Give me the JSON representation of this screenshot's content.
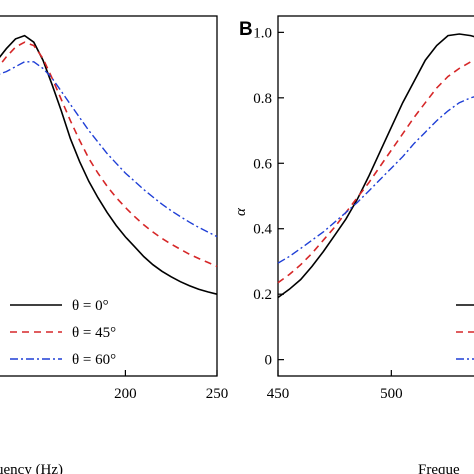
{
  "chart_data": [
    {
      "panel": "A",
      "type": "line",
      "xlabel": "Frequency (Hz)",
      "ylabel": "",
      "xlim": [
        125,
        250
      ],
      "ylim": [
        -0.05,
        1.05
      ],
      "xticks": [
        200,
        250
      ],
      "xtick_labels": [
        "200",
        "250"
      ],
      "legend_position": "lower-left",
      "series": [
        {
          "name": "θ = 0°",
          "color": "#000000",
          "dash": "solid",
          "x": [
            125,
            130,
            135,
            140,
            145,
            150,
            155,
            160,
            165,
            170,
            175,
            180,
            185,
            190,
            195,
            200,
            205,
            210,
            215,
            220,
            225,
            230,
            235,
            240,
            245,
            250
          ],
          "y": [
            0.88,
            0.915,
            0.95,
            0.98,
            0.99,
            0.97,
            0.915,
            0.84,
            0.76,
            0.675,
            0.605,
            0.545,
            0.495,
            0.45,
            0.41,
            0.375,
            0.345,
            0.315,
            0.29,
            0.27,
            0.253,
            0.238,
            0.226,
            0.215,
            0.207,
            0.2
          ]
        },
        {
          "name": "θ = 45°",
          "color": "#d62728",
          "dash": "dashed",
          "x": [
            125,
            130,
            135,
            140,
            145,
            150,
            155,
            160,
            165,
            170,
            175,
            180,
            185,
            190,
            195,
            200,
            205,
            210,
            215,
            220,
            225,
            230,
            235,
            240,
            245,
            250
          ],
          "y": [
            0.85,
            0.89,
            0.925,
            0.955,
            0.97,
            0.96,
            0.92,
            0.86,
            0.795,
            0.73,
            0.67,
            0.615,
            0.57,
            0.53,
            0.495,
            0.465,
            0.437,
            0.412,
            0.39,
            0.37,
            0.353,
            0.337,
            0.322,
            0.309,
            0.297,
            0.285
          ]
        },
        {
          "name": "θ = 60°",
          "color": "#1f3fd6",
          "dash": "dashdot",
          "x": [
            125,
            130,
            135,
            140,
            145,
            150,
            155,
            160,
            165,
            170,
            175,
            180,
            185,
            190,
            195,
            200,
            205,
            210,
            215,
            220,
            225,
            230,
            235,
            240,
            245,
            250
          ],
          "y": [
            0.86,
            0.87,
            0.88,
            0.895,
            0.91,
            0.91,
            0.89,
            0.86,
            0.82,
            0.78,
            0.74,
            0.7,
            0.665,
            0.63,
            0.6,
            0.57,
            0.545,
            0.52,
            0.497,
            0.475,
            0.455,
            0.437,
            0.42,
            0.404,
            0.39,
            0.376
          ]
        }
      ]
    },
    {
      "panel": "B",
      "type": "line",
      "xlabel": "Frequency (Hz)",
      "ylabel": "α",
      "xlim": [
        450,
        540
      ],
      "ylim": [
        -0.05,
        1.05
      ],
      "xticks": [
        450,
        500
      ],
      "xtick_labels": [
        "450",
        "500"
      ],
      "yticks": [
        0,
        0.2,
        0.4,
        0.6,
        0.8,
        1.0
      ],
      "ytick_labels": [
        "0",
        "0.2",
        "0.4",
        "0.6",
        "0.8",
        "1.0"
      ],
      "legend_position": "lower-right",
      "series": [
        {
          "name": "θ = 0°",
          "color": "#000000",
          "dash": "solid",
          "x": [
            450,
            455,
            460,
            465,
            470,
            475,
            480,
            485,
            490,
            495,
            500,
            505,
            510,
            515,
            520,
            525,
            530,
            535,
            540
          ],
          "y": [
            0.19,
            0.215,
            0.245,
            0.285,
            0.33,
            0.38,
            0.43,
            0.49,
            0.56,
            0.635,
            0.71,
            0.785,
            0.85,
            0.915,
            0.96,
            0.99,
            0.995,
            0.99,
            0.98
          ]
        },
        {
          "name": "θ = 45°",
          "color": "#d62728",
          "dash": "dashed",
          "x": [
            450,
            455,
            460,
            465,
            470,
            475,
            480,
            485,
            490,
            495,
            500,
            505,
            510,
            515,
            520,
            525,
            530,
            535,
            540
          ],
          "y": [
            0.235,
            0.26,
            0.29,
            0.325,
            0.365,
            0.405,
            0.45,
            0.495,
            0.54,
            0.59,
            0.64,
            0.69,
            0.74,
            0.785,
            0.83,
            0.865,
            0.89,
            0.91,
            0.92
          ]
        },
        {
          "name": "θ = 60°",
          "color": "#1f3fd6",
          "dash": "dashdot",
          "x": [
            450,
            455,
            460,
            465,
            470,
            475,
            480,
            485,
            490,
            495,
            500,
            505,
            510,
            515,
            520,
            525,
            530,
            535,
            540
          ],
          "y": [
            0.295,
            0.315,
            0.34,
            0.365,
            0.39,
            0.42,
            0.45,
            0.48,
            0.515,
            0.55,
            0.585,
            0.62,
            0.66,
            0.695,
            0.73,
            0.76,
            0.785,
            0.8,
            0.81
          ]
        }
      ]
    }
  ],
  "panel_a": {
    "x_label_fragment": "uency (Hz)",
    "legend": [
      "θ = 0°",
      "θ = 45°",
      "θ = 60°"
    ]
  },
  "panel_b": {
    "letter": "B",
    "x_label_fragment": "Freque",
    "ylabel": "α"
  }
}
